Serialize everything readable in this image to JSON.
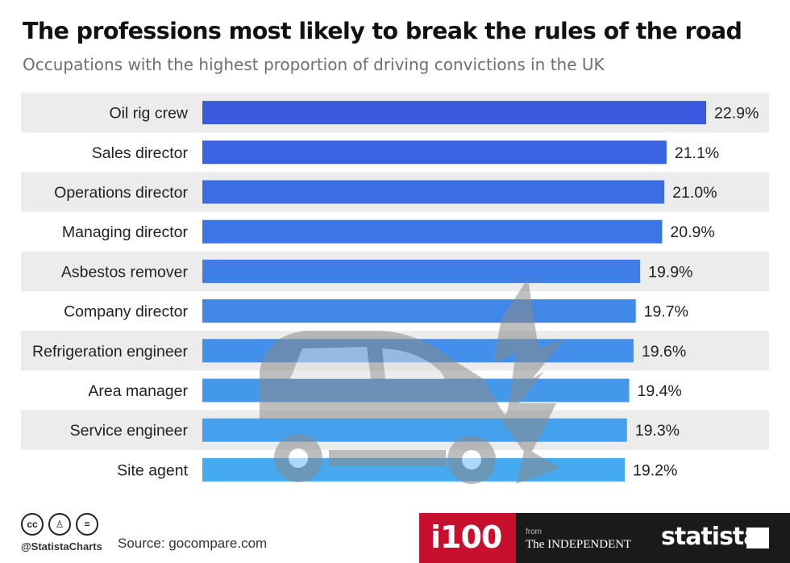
{
  "header": {
    "title": "The professions most likely to break the rules of the road",
    "subtitle": "Occupations with the highest proportion of driving convictions in the UK"
  },
  "chart_data": {
    "type": "bar",
    "orientation": "horizontal",
    "categories": [
      "Oil rig crew",
      "Sales director",
      "Operations director",
      "Managing director",
      "Asbestos remover",
      "Company director",
      "Refrigeration engineer",
      "Area manager",
      "Service engineer",
      "Site agent"
    ],
    "values": [
      22.9,
      21.1,
      21.0,
      20.9,
      19.9,
      19.7,
      19.6,
      19.4,
      19.3,
      19.2
    ],
    "value_labels": [
      "22.9%",
      "21.1%",
      "21.0%",
      "20.9%",
      "19.9%",
      "19.7%",
      "19.6%",
      "19.4%",
      "19.3%",
      "19.2%"
    ],
    "unit": "%",
    "xlim": [
      0,
      25
    ],
    "grid": false,
    "legend": "none",
    "colors": {
      "bar_top": "#3a5be0",
      "bar_bottom": "#46aaf0",
      "row_band": "#ececec",
      "watermark": "#8a8a8a"
    }
  },
  "footer": {
    "handle": "@StatistaCharts",
    "source": "Source: gocompare.com",
    "logo_i100": "i100",
    "logo_from": "from",
    "logo_independent": "The INDEPENDENT",
    "logo_statista": "statista",
    "icons": [
      "cc-icon",
      "by-icon",
      "nd-icon"
    ]
  }
}
